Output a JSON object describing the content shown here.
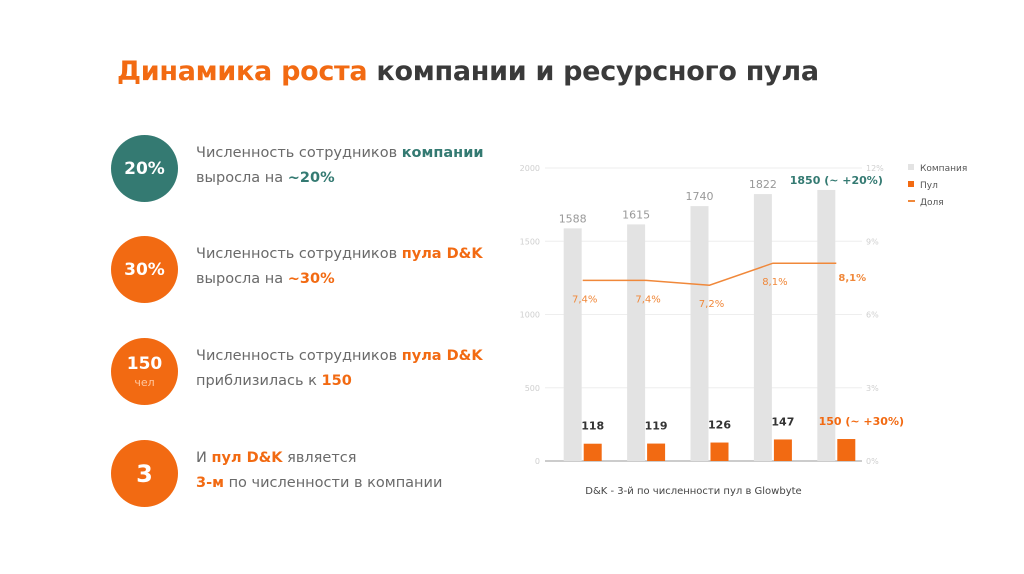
{
  "title": {
    "accent": "Динамика роста",
    "rest": " компании и ресурсного пула"
  },
  "items": [
    {
      "badge": "20%",
      "badge_sub": null,
      "color": "#347a72",
      "line1": "Численность сотрудников ",
      "line1_bold": "компании",
      "line2": "выросла на ",
      "line2_bold": "~20%"
    },
    {
      "badge": "30%",
      "badge_sub": null,
      "color": "#f26a12",
      "line1": "Численность сотрудников ",
      "line1_bold": "пула D&K",
      "line2": "выросла на ",
      "line2_bold": "~30%"
    },
    {
      "badge": "150",
      "badge_sub": "чел",
      "color": "#f26a12",
      "line1": "Численность сотрудников ",
      "line1_bold": "пула D&K",
      "line2": "приблизилась к ",
      "line2_bold": "150"
    },
    {
      "badge": "3",
      "badge_sub": null,
      "color": "#f26a12",
      "line1_pre": "И ",
      "line1_bold": "пул D&K",
      "line1": " является",
      "line2_bold": "3-м",
      "line2": " по численности в компании"
    }
  ],
  "chart_data": {
    "type": "bar",
    "title": "D&K - 3-й по численности пул в Glowbyte",
    "categories": [
      "1",
      "2",
      "3",
      "4",
      "5"
    ],
    "series": [
      {
        "name": "Компания",
        "kind": "bar",
        "axis": "left",
        "color": "#e3e3e3",
        "values": [
          1588,
          1615,
          1740,
          1822,
          1850
        ],
        "labels": [
          "1588",
          "1615",
          "1740",
          "1822",
          "1850 (~ +20%)"
        ]
      },
      {
        "name": "Пул",
        "kind": "bar",
        "axis": "left",
        "color": "#f26a12",
        "values": [
          118,
          119,
          126,
          147,
          150
        ],
        "labels": [
          "118",
          "119",
          "126",
          "147",
          "150 (~ +30%)"
        ]
      },
      {
        "name": "Доля",
        "kind": "line",
        "axis": "right",
        "color": "#f0883a",
        "values": [
          7.4,
          7.4,
          7.2,
          8.1,
          8.1
        ],
        "labels": [
          "7,4%",
          "7,4%",
          "7,2%",
          "8,1%",
          "8,1%"
        ]
      }
    ],
    "ylim": [
      0,
      2000
    ],
    "yticks": [
      "0",
      "500",
      "1000",
      "1500",
      "2000"
    ],
    "y2lim": [
      0,
      12
    ],
    "y2ticks": [
      "0%",
      "3%",
      "6%",
      "9%",
      "12%"
    ],
    "legend_position": "top-right",
    "grid": true
  }
}
